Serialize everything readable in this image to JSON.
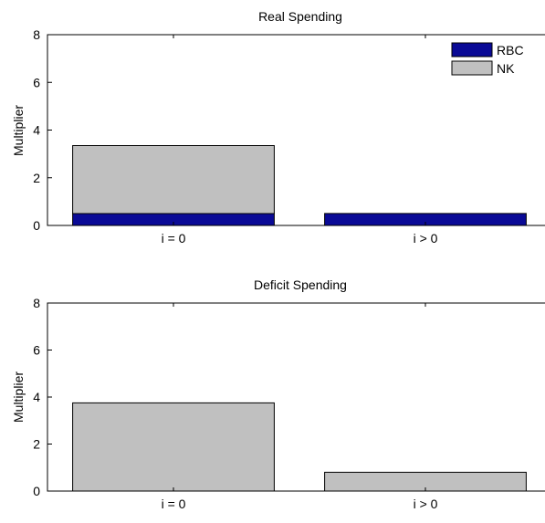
{
  "chart_data": [
    {
      "type": "bar",
      "stacked": true,
      "title": "Real Spending",
      "ylabel": "Multiplier",
      "xlabel": "",
      "ylim": [
        0,
        8
      ],
      "yticks": [
        0,
        2,
        4,
        6,
        8
      ],
      "categories": [
        "i = 0",
        "i > 0"
      ],
      "series": [
        {
          "name": "RBC",
          "values": [
            0.5,
            0.5
          ],
          "color": "#0a0a96"
        },
        {
          "name": "NK",
          "values": [
            2.85,
            0.0
          ],
          "color": "#c0c0c0"
        }
      ],
      "legend": {
        "position": "top-right",
        "entries": [
          "RBC",
          "NK"
        ]
      },
      "grid": false
    },
    {
      "type": "bar",
      "stacked": true,
      "title": "Deficit Spending",
      "ylabel": "Multiplier",
      "xlabel": "",
      "ylim": [
        0,
        8
      ],
      "yticks": [
        0,
        2,
        4,
        6,
        8
      ],
      "categories": [
        "i = 0",
        "i > 0"
      ],
      "series": [
        {
          "values": [
            3.75,
            0.8
          ],
          "color": "#c0c0c0"
        }
      ],
      "grid": false
    }
  ]
}
